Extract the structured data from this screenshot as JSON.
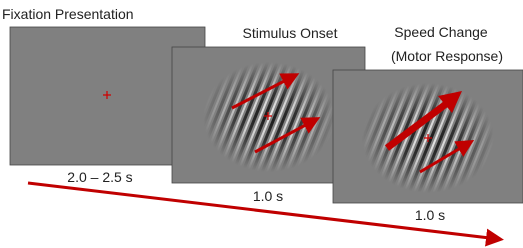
{
  "panels": [
    {
      "title_lines": [
        "Fixation Presentation"
      ],
      "duration": "2.0 – 2.5 s"
    },
    {
      "title_lines": [
        "Stimulus Onset"
      ],
      "duration": "1.0 s"
    },
    {
      "title_lines": [
        "Speed Change",
        "(Motor Response)"
      ],
      "duration": "1.0 s"
    }
  ]
}
